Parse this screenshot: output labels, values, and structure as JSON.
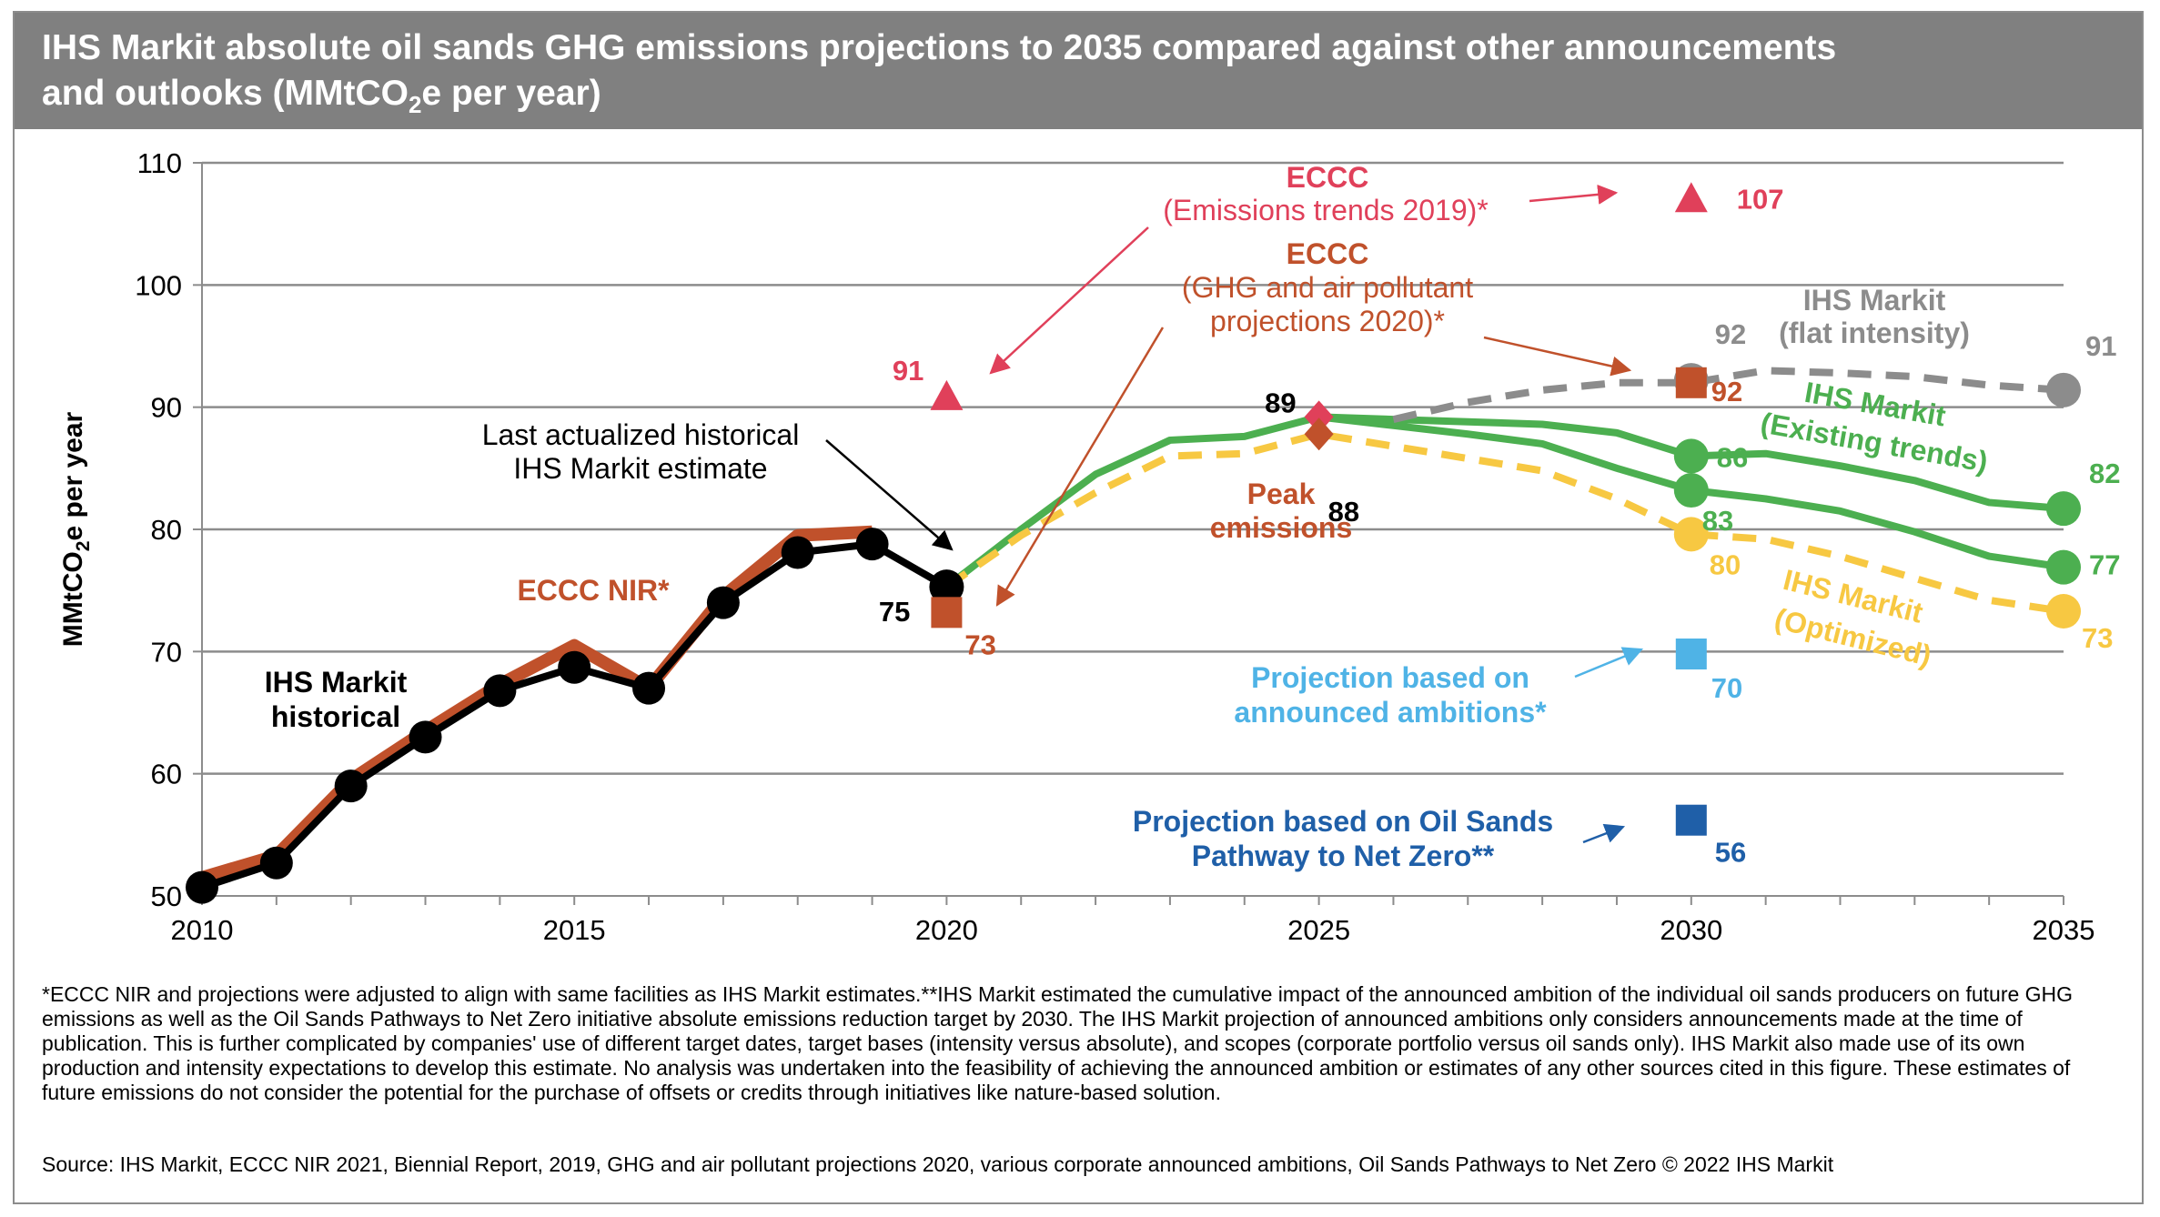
{
  "title": {
    "line1": "IHS Markit absolute oil sands GHG emissions projections to 2035 compared against other announcements",
    "line2_pre": "and outlooks (MMtCO",
    "line2_sub": "2",
    "line2_post": "e per year)"
  },
  "chart_data": {
    "type": "line",
    "ylabel_pre": "MMtCO",
    "ylabel_sub": "2",
    "ylabel_post": "e per year",
    "ylim": [
      50,
      110
    ],
    "xlim": [
      2010,
      2035
    ],
    "y_ticks": [
      "50",
      "60",
      "70",
      "80",
      "90",
      "100",
      "110"
    ],
    "x_ticks": [
      "2010",
      "2015",
      "2020",
      "2025",
      "2030",
      "2035"
    ],
    "grid": true,
    "series": [
      {
        "name": "ECCC NIR*",
        "color": "#c0512b",
        "x": [
          2010,
          2011,
          2012,
          2013,
          2014,
          2015,
          2016,
          2017,
          2018,
          2019
        ],
        "y": [
          51.5,
          53.3,
          59.5,
          63.5,
          67.3,
          70.5,
          67.0,
          74.5,
          79.5,
          79.8
        ]
      },
      {
        "name": "IHS Markit historical",
        "color": "#000000",
        "x": [
          2010,
          2011,
          2012,
          2013,
          2014,
          2015,
          2016,
          2017,
          2018,
          2019,
          2020
        ],
        "y": [
          50.7,
          52.7,
          59.0,
          63.0,
          66.8,
          68.7,
          67.0,
          74.0,
          78.1,
          78.8,
          75.3
        ]
      },
      {
        "name": "IHS Markit (Existing trends) upper",
        "color": "#4caf50",
        "x": [
          2020,
          2021,
          2022,
          2023,
          2024,
          2025,
          2026,
          2027,
          2028,
          2029,
          2030,
          2031,
          2032,
          2033,
          2034,
          2035
        ],
        "y": [
          75.3,
          80.0,
          84.5,
          87.3,
          87.6,
          89.2,
          89.0,
          88.8,
          88.6,
          87.9,
          86.0,
          86.2,
          85.2,
          84.0,
          82.2,
          81.7
        ]
      },
      {
        "name": "IHS Markit (Existing trends) lower",
        "color": "#4caf50",
        "x": [
          2025,
          2026,
          2027,
          2028,
          2029,
          2030,
          2031,
          2032,
          2033,
          2034,
          2035
        ],
        "y": [
          89.2,
          88.5,
          87.8,
          87.0,
          85.0,
          83.2,
          82.5,
          81.5,
          79.8,
          77.8,
          76.9
        ]
      },
      {
        "name": "IHS Markit (Optimized)",
        "color": "#f7c842",
        "x": [
          2020,
          2021,
          2022,
          2023,
          2024,
          2025,
          2026,
          2027,
          2028,
          2029,
          2030,
          2031,
          2032,
          2033,
          2034,
          2035
        ],
        "y": [
          75.3,
          79.5,
          83.0,
          86.0,
          86.2,
          87.8,
          86.8,
          85.8,
          84.8,
          82.5,
          79.6,
          79.2,
          77.8,
          76.0,
          74.2,
          73.3
        ]
      },
      {
        "name": "IHS Markit (flat intensity)",
        "color": "#8c8c8c",
        "x": [
          2026,
          2027,
          2028,
          2029,
          2030,
          2031,
          2032,
          2033,
          2034,
          2035
        ],
        "y": [
          89.0,
          90.4,
          91.4,
          92.0,
          92.0,
          93.0,
          92.8,
          92.5,
          91.8,
          91.4
        ]
      }
    ],
    "points": [
      {
        "x": 2020,
        "y": 75.3,
        "shape": "circle",
        "color": "#000000",
        "value": "75"
      },
      {
        "x": 2030,
        "y": 86.0,
        "shape": "circle",
        "color": "#4caf50",
        "value": "86"
      },
      {
        "x": 2030,
        "y": 83.2,
        "shape": "circle",
        "color": "#4caf50",
        "value": "83"
      },
      {
        "x": 2035,
        "y": 81.7,
        "shape": "circle",
        "color": "#4caf50",
        "value": "82"
      },
      {
        "x": 2035,
        "y": 76.9,
        "shape": "circle",
        "color": "#4caf50",
        "value": "77"
      },
      {
        "x": 2030,
        "y": 79.6,
        "shape": "circle",
        "color": "#f7c842",
        "value": "80"
      },
      {
        "x": 2035,
        "y": 73.3,
        "shape": "circle",
        "color": "#f7c842",
        "value": "73"
      },
      {
        "x": 2035,
        "y": 91.4,
        "shape": "circle",
        "color": "#8c8c8c",
        "value": "91"
      },
      {
        "x": 2030,
        "y": 92.2,
        "shape": "circle",
        "color": "#8c8c8c",
        "value": "92"
      },
      {
        "x": 2020,
        "y": 90.8,
        "shape": "triangle",
        "color": "#e0405a",
        "value": "91"
      },
      {
        "x": 2030,
        "y": 107.0,
        "shape": "triangle",
        "color": "#e0405a",
        "value": "107"
      },
      {
        "x": 2020,
        "y": 73.2,
        "shape": "square",
        "color": "#c0512b",
        "value": "73"
      },
      {
        "x": 2030,
        "y": 92.0,
        "shape": "square",
        "color": "#c0512b",
        "value": "92"
      },
      {
        "x": 2025,
        "y": 89.2,
        "shape": "diamond",
        "color": "#e0405a",
        "value": "89"
      },
      {
        "x": 2025,
        "y": 87.8,
        "shape": "diamond",
        "color": "#c0512b",
        "value": "88"
      },
      {
        "x": 2030,
        "y": 69.8,
        "shape": "square",
        "color": "#4fb3e6",
        "value": "70"
      },
      {
        "x": 2030,
        "y": 56.2,
        "shape": "square",
        "color": "#1f5fa8",
        "value": "56"
      }
    ],
    "annotations": {
      "eccc_trends_1": "ECCC",
      "eccc_trends_2": "(Emissions trends 2019)*",
      "eccc_proj_1": "ECCC",
      "eccc_proj_2": "(GHG and air pollutant",
      "eccc_proj_3": "projections 2020)*",
      "flat_1": "IHS Markit",
      "flat_2": "(flat intensity)",
      "existing_1": "IHS Markit",
      "existing_2": "(Existing trends)",
      "optimized_1": "IHS Markit",
      "optimized_2": "(Optimized)",
      "last_actual_1": "Last actualized historical",
      "last_actual_2": "IHS Markit estimate",
      "peak_1": "Peak",
      "peak_2": "emissions",
      "eccc_nir": "ECCC NIR*",
      "historical_1": "IHS Markit",
      "historical_2": "historical",
      "ambitions_1": "Projection based on",
      "ambitions_2": "announced ambitions*",
      "pathway_1": "Projection based on Oil Sands",
      "pathway_2": "Pathway to Net Zero**"
    }
  },
  "footnote": "*ECCC NIR and projections were adjusted to align with same facilities as IHS Markit estimates.**IHS Markit estimated the cumulative impact of the announced ambition of the individual oil sands producers on future GHG emissions as well as the Oil Sands Pathways to Net Zero initiative absolute emissions reduction target by 2030. The IHS Markit projection of announced ambitions only considers announcements made at the time of publication. This is further complicated by companies' use of different target dates, target bases (intensity versus absolute), and scopes (corporate portfolio versus oil sands only). IHS Markit also made use of its own production and intensity expectations to develop this estimate. No analysis was undertaken into the feasibility of achieving the announced ambition or estimates of any other sources cited in this figure.  These estimates of future emissions do not consider the potential for the purchase of offsets or credits through initiatives like nature-based solution.",
  "source": "Source: IHS Markit, ECCC NIR 2021, Biennial Report, 2019, GHG and air pollutant projections 2020, various corporate announced ambitions, Oil Sands Pathways to Net Zero  © 2022 IHS Markit"
}
